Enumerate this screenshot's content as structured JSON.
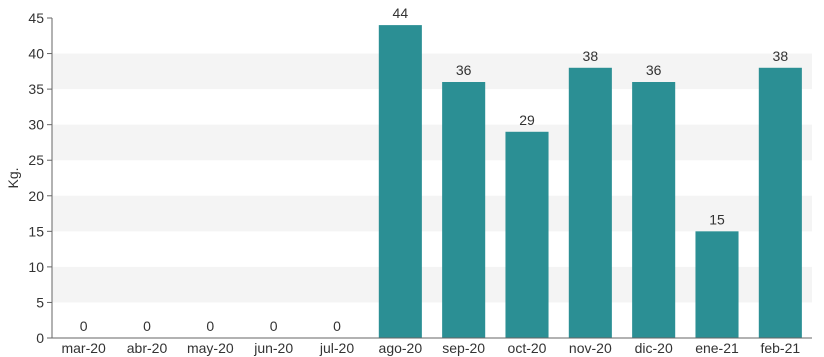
{
  "chart_data": {
    "type": "bar",
    "title": "",
    "xlabel": "",
    "ylabel": "Kg.",
    "ylim": [
      0,
      45
    ],
    "yticks": [
      "0",
      "5",
      "10",
      "15",
      "20",
      "25",
      "30",
      "35",
      "40",
      "45"
    ],
    "categories": [
      "mar-20",
      "abr-20",
      "may-20",
      "jun-20",
      "jul-20",
      "ago-20",
      "sep-20",
      "oct-20",
      "nov-20",
      "dic-20",
      "ene-21",
      "feb-21"
    ],
    "values": [
      0,
      0,
      0,
      0,
      0,
      44,
      36,
      29,
      38,
      36,
      15,
      38
    ],
    "data_labels": [
      "0",
      "0",
      "0",
      "0",
      "0",
      "44",
      "36",
      "29",
      "38",
      "36",
      "15",
      "38"
    ],
    "grid": "horizontal alternating bands",
    "legend": "none",
    "colors": {
      "bar": "#2b8f94",
      "band": "#f4f4f4",
      "axis": "#666666",
      "text": "#333333"
    }
  }
}
